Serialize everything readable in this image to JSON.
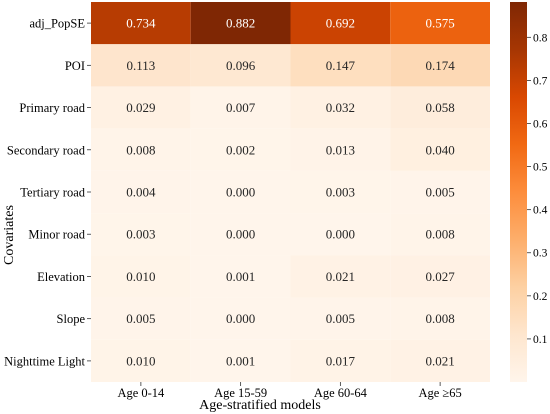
{
  "chart_data": {
    "type": "heatmap",
    "xlabel": "Age-stratified models",
    "ylabel": "Covariates",
    "x_categories": [
      "Age 0-14",
      "Age 15-59",
      "Age 60-64",
      "Age ≥65"
    ],
    "y_categories": [
      "adj_PopSE",
      "POI",
      "Primary road",
      "Secondary road",
      "Tertiary road",
      "Minor road",
      "Elevation",
      "Slope",
      "Nighttime Light"
    ],
    "values": [
      [
        0.734,
        0.882,
        0.692,
        0.575
      ],
      [
        0.113,
        0.096,
        0.147,
        0.174
      ],
      [
        0.029,
        0.007,
        0.032,
        0.058
      ],
      [
        0.008,
        0.002,
        0.013,
        0.04
      ],
      [
        0.004,
        0.0,
        0.003,
        0.005
      ],
      [
        0.003,
        0.0,
        0.0,
        0.008
      ],
      [
        0.01,
        0.001,
        0.021,
        0.027
      ],
      [
        0.005,
        0.0,
        0.005,
        0.008
      ],
      [
        0.01,
        0.001,
        0.017,
        0.021
      ]
    ],
    "cell_labels": [
      [
        "0.734",
        "0.882",
        "0.692",
        "0.575"
      ],
      [
        "0.113",
        "0.096",
        "0.147",
        "0.174"
      ],
      [
        "0.029",
        "0.007",
        "0.032",
        "0.058"
      ],
      [
        "0.008",
        "0.002",
        "0.013",
        "0.040"
      ],
      [
        "0.004",
        "0.000",
        "0.003",
        "0.005"
      ],
      [
        "0.003",
        "0.000",
        "0.000",
        "0.008"
      ],
      [
        "0.010",
        "0.001",
        "0.021",
        "0.027"
      ],
      [
        "0.005",
        "0.000",
        "0.005",
        "0.008"
      ],
      [
        "0.010",
        "0.001",
        "0.017",
        "0.021"
      ]
    ],
    "colorbar": {
      "range": [
        0.0,
        0.882
      ],
      "ticks": [
        0.1,
        0.2,
        0.3,
        0.4,
        0.5,
        0.6,
        0.7,
        0.8
      ],
      "tick_labels": [
        "0.1",
        "0.2",
        "0.3",
        "0.4",
        "0.5",
        "0.6",
        "0.7",
        "0.8"
      ]
    },
    "colormap": {
      "name": "Oranges",
      "stops": [
        "#fff5eb",
        "#fee6ce",
        "#fdd0a2",
        "#fdae6b",
        "#fd8d3c",
        "#f16913",
        "#d94801",
        "#a63603",
        "#7f2704"
      ]
    },
    "grid": false,
    "legend": "colorbar-right"
  }
}
